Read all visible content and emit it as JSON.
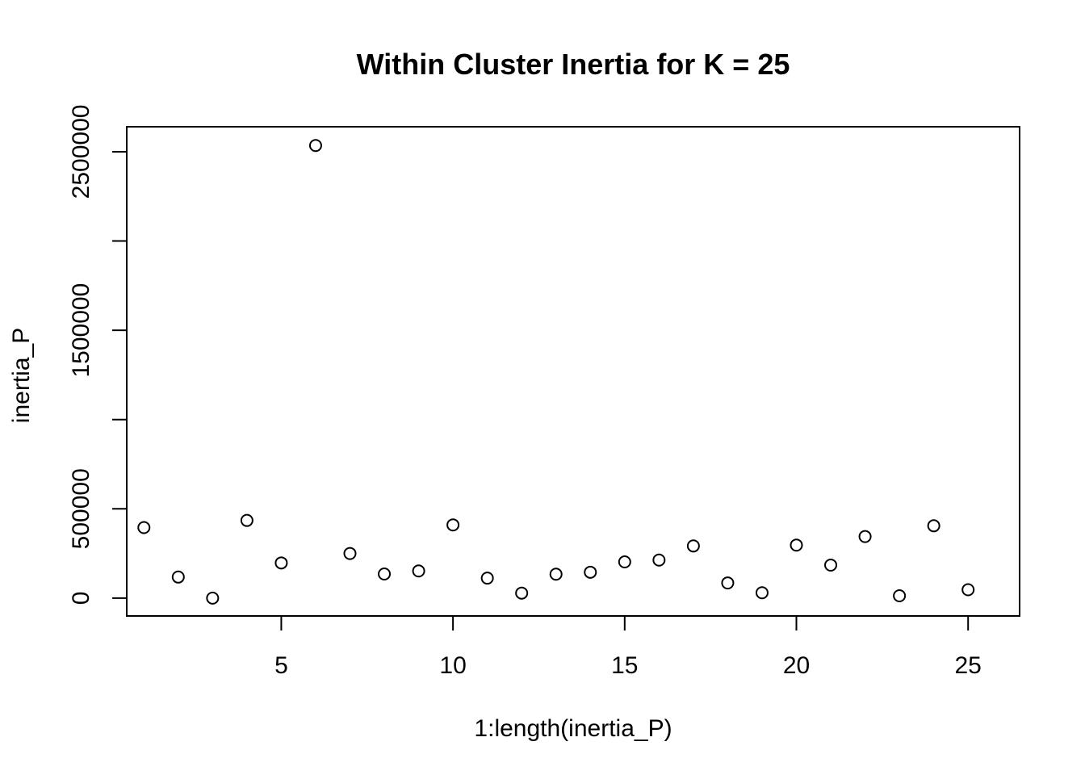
{
  "chart_data": {
    "type": "scatter",
    "title": "Within Cluster Inertia for K = 25",
    "xlabel": "1:length(inertia_P)",
    "ylabel": "inertia_P",
    "x": [
      1,
      2,
      3,
      4,
      5,
      6,
      7,
      8,
      9,
      10,
      11,
      12,
      13,
      14,
      15,
      16,
      17,
      18,
      19,
      20,
      21,
      22,
      23,
      24,
      25
    ],
    "y": [
      395000,
      118000,
      0,
      435000,
      197000,
      2535000,
      250000,
      135000,
      152000,
      410000,
      112000,
      28000,
      134000,
      145000,
      203000,
      213000,
      292000,
      85000,
      30000,
      297000,
      185000,
      345000,
      13000,
      405000,
      47000
    ],
    "xlim": [
      0.5,
      26.5
    ],
    "ylim": [
      -100000,
      2640000
    ],
    "x_ticks": [
      5,
      10,
      15,
      20,
      25
    ],
    "x_tick_labels": [
      "5",
      "10",
      "15",
      "20",
      "25"
    ],
    "y_ticks": [
      0,
      500000,
      1000000,
      1500000,
      2000000,
      2500000
    ],
    "y_tick_labels": [
      "0",
      "500000",
      "",
      "1500000",
      "",
      "2500000"
    ],
    "marker": "open-circle",
    "marker_color": "#000000",
    "grid": false,
    "legend": "none"
  }
}
